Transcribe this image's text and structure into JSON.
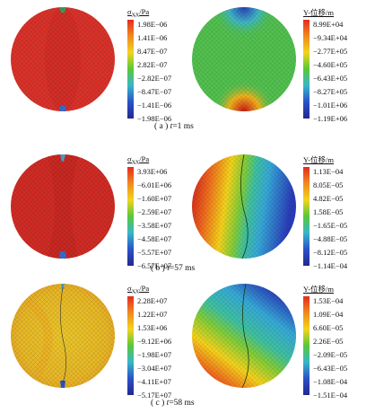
{
  "rows": [
    {
      "caption_prefix": "( a )",
      "caption_t": "t",
      "caption_value": "=1 ms",
      "stress_legend": {
        "title": "σ",
        "subscript": "XX",
        "unit": "/Pa",
        "labels": [
          "1.98E−06",
          "1.41E−06",
          "8.47E−07",
          "2.82E−07",
          "−2.82E−07",
          "−8.47E−07",
          "−1.41E−06",
          "−1.98E−06"
        ]
      },
      "disp_legend": {
        "title": "Y-位移/m",
        "labels": [
          "8.99E+04",
          "−9.34E+04",
          "−2.77E+05",
          "−4.60E+05",
          "−6.43E+05",
          "−8.27E+05",
          "−1.01E+06",
          "−1.19E+06"
        ]
      }
    },
    {
      "caption_prefix": "( b )",
      "caption_t": "t",
      "caption_value": "=57 ms",
      "stress_legend": {
        "title": "σ",
        "subscript": "XX",
        "unit": "/Pa",
        "labels": [
          "3.93E+06",
          "−6.01E+06",
          "−1.60E+07",
          "−2.59E+07",
          "−3.58E+07",
          "−4.58E+07",
          "−5.57E+07",
          "−6.57E+07"
        ]
      },
      "disp_legend": {
        "title": "Y-位移/m",
        "labels": [
          "1.13E−04",
          "8.05E−05",
          "4.82E−05",
          "1.58E−05",
          "−1.65E−05",
          "−4.88E−05",
          "−8.12E−05",
          "−1.14E−04"
        ]
      }
    },
    {
      "caption_prefix": "( c )",
      "caption_t": "t",
      "caption_value": "=58 ms",
      "stress_legend": {
        "title": "σ",
        "subscript": "XX",
        "unit": "/Pa",
        "labels": [
          "2.28E+07",
          "1.22E+07",
          "1.53E+06",
          "−9.12E+06",
          "−1.98E+07",
          "−3.04E+07",
          "−4.11E+07",
          "−5.17E+07"
        ]
      },
      "disp_legend": {
        "title": "Y-位移/m",
        "labels": [
          "1.53E−04",
          "1.09E−04",
          "6.60E−05",
          "2.26E−05",
          "−2.09E−05",
          "−6.43E−05",
          "−1.08E−04",
          "−1.51E−04"
        ]
      }
    }
  ]
}
